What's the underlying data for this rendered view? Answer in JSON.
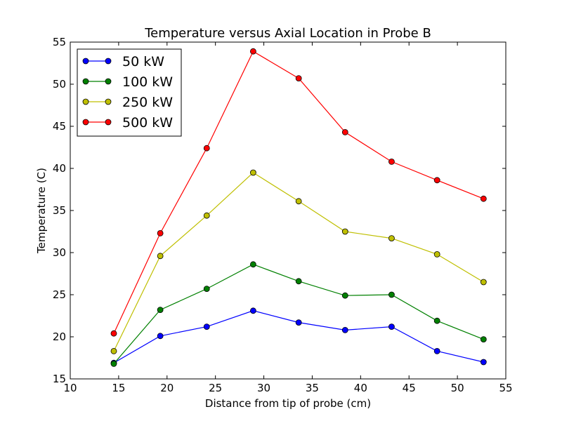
{
  "chart_data": {
    "type": "line",
    "title": "Temperature versus Axial Location in Probe B",
    "xlabel": "Distance from tip of probe (cm)",
    "ylabel": "Temperature (C)",
    "xlim": [
      10,
      55
    ],
    "ylim": [
      15,
      55
    ],
    "xticks": [
      10,
      15,
      20,
      25,
      30,
      35,
      40,
      45,
      50,
      55
    ],
    "yticks": [
      15,
      20,
      25,
      30,
      35,
      40,
      45,
      50,
      55
    ],
    "grid": false,
    "legend_position": "upper-left",
    "x": [
      14.5,
      19.3,
      24.1,
      28.9,
      33.6,
      38.4,
      43.2,
      47.9,
      52.7
    ],
    "series": [
      {
        "name": "50 kW",
        "color": "#0000ff",
        "values": [
          16.9,
          20.1,
          21.2,
          23.1,
          21.7,
          20.8,
          21.2,
          18.3,
          17.0
        ]
      },
      {
        "name": "100 kW",
        "color": "#008000",
        "values": [
          16.8,
          23.2,
          25.7,
          28.6,
          26.6,
          24.9,
          25.0,
          21.9,
          19.7
        ]
      },
      {
        "name": "250 kW",
        "color": "#bfbf00",
        "values": [
          18.3,
          29.6,
          34.4,
          39.5,
          36.1,
          32.5,
          31.7,
          29.8,
          26.5
        ]
      },
      {
        "name": "500 kW",
        "color": "#ff0000",
        "values": [
          20.4,
          32.3,
          42.4,
          53.9,
          50.7,
          44.3,
          40.8,
          38.6,
          36.4
        ]
      }
    ]
  }
}
